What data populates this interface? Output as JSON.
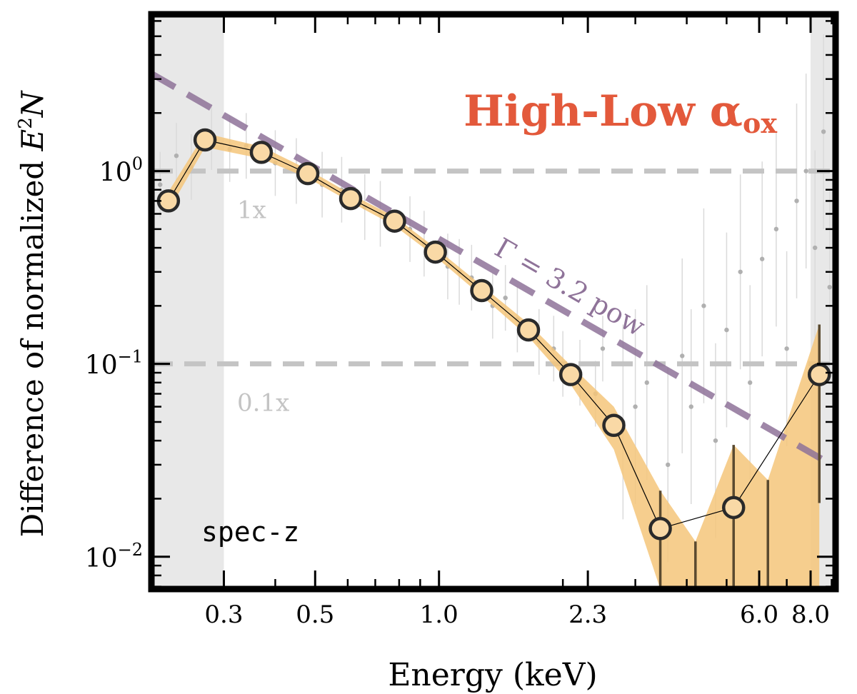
{
  "chart_data": {
    "type": "scatter",
    "title": "High-Low α",
    "title_subscript": "ox",
    "xlabel": "Energy (keV)",
    "ylabel": "Difference of normalized ",
    "ylabel_math": "E",
    "ylabel_sup": "2",
    "ylabel_tail": "N",
    "x_scale": "log",
    "y_scale": "log",
    "xlim": [
      0.2,
      9.2
    ],
    "ylim": [
      0.0068,
      6.5
    ],
    "xticks": [
      {
        "value": 0.3,
        "label": "0.3"
      },
      {
        "value": 0.5,
        "label": "0.5"
      },
      {
        "value": 1.0,
        "label": "1.0"
      },
      {
        "value": 2.3,
        "label": "2.3"
      },
      {
        "value": 6.0,
        "label": "6.0"
      },
      {
        "value": 8.0,
        "label": "8.0"
      }
    ],
    "yticks": [
      {
        "value": 0.01,
        "base": "10",
        "exp": "−2"
      },
      {
        "value": 0.1,
        "base": "10",
        "exp": "−1"
      },
      {
        "value": 1.0,
        "base": "10",
        "exp": "0"
      }
    ],
    "colors": {
      "shade": "#e8e8e8",
      "band": "#f4c57a",
      "line": "#000000",
      "marker_edge": "#2a2a2a",
      "marker_fill": "#f9d9a6",
      "powerlaw": "#8f7399",
      "reference": "#c4c4c4",
      "title": "#e3593b",
      "scatter": "#b0b0b0"
    },
    "shaded_regions": [
      [
        0.2,
        0.3
      ],
      [
        8.0,
        9.2
      ]
    ],
    "reference_lines": [
      {
        "y": 1.0,
        "label": "1x"
      },
      {
        "y": 0.1,
        "label": "0.1x"
      }
    ],
    "powerlaw": {
      "label": "Γ = 3.2 pow",
      "points": [
        [
          0.2,
          3.2
        ],
        [
          9.0,
          0.03
        ]
      ]
    },
    "annotation": "spec-z",
    "series": [
      {
        "x": [
          0.22,
          0.27,
          0.37,
          0.48,
          0.61,
          0.78,
          0.98,
          1.27,
          1.65,
          2.09,
          2.66,
          3.45,
          5.2,
          8.4
        ],
        "y": [
          0.7,
          1.45,
          1.25,
          0.97,
          0.72,
          0.55,
          0.38,
          0.24,
          0.15,
          0.088,
          0.048,
          0.014,
          0.018,
          0.088
        ],
        "band_x": [
          0.22,
          0.27,
          0.37,
          0.48,
          0.61,
          0.78,
          0.98,
          1.27,
          1.65,
          2.09,
          2.66,
          3.45,
          4.2,
          5.2,
          6.3,
          8.4
        ],
        "band_low": [
          0.62,
          1.33,
          1.16,
          0.92,
          0.69,
          0.52,
          0.36,
          0.225,
          0.138,
          0.078,
          0.036,
          0.0068,
          0.0068,
          0.0068,
          0.0068,
          0.0068
        ],
        "band_high": [
          0.78,
          1.57,
          1.34,
          1.02,
          0.76,
          0.58,
          0.4,
          0.255,
          0.162,
          0.098,
          0.06,
          0.022,
          0.012,
          0.038,
          0.025,
          0.16
        ],
        "errorbars": [
          {
            "x": 3.45,
            "low": 0.0068,
            "high": 0.022
          },
          {
            "x": 4.2,
            "low": 0.0068,
            "high": 0.012
          },
          {
            "x": 5.2,
            "low": 0.0068,
            "high": 0.038
          },
          {
            "x": 6.3,
            "low": 0.0068,
            "high": 0.025
          },
          {
            "x": 8.4,
            "low": 0.019,
            "high": 0.16
          }
        ]
      }
    ],
    "background_points": {
      "x": [
        0.21,
        0.23,
        0.25,
        0.28,
        0.31,
        0.34,
        0.4,
        0.45,
        0.52,
        0.58,
        0.66,
        0.72,
        0.85,
        0.92,
        1.05,
        1.12,
        1.2,
        1.35,
        1.45,
        1.55,
        1.75,
        1.9,
        2.0,
        2.2,
        2.4,
        2.5,
        2.8,
        3.0,
        3.2,
        3.6,
        3.9,
        4.1,
        4.4,
        4.7,
        5.0,
        5.4,
        5.7,
        6.1,
        6.6,
        7.0,
        7.4,
        7.8,
        8.2,
        8.6,
        8.9
      ],
      "y": [
        0.85,
        1.2,
        1.05,
        1.5,
        1.3,
        1.35,
        1.1,
        1.0,
        0.85,
        0.8,
        0.65,
        0.6,
        0.5,
        0.42,
        0.32,
        0.3,
        0.28,
        0.2,
        0.22,
        0.17,
        0.13,
        0.12,
        0.1,
        0.09,
        0.07,
        0.12,
        0.05,
        0.06,
        0.08,
        0.03,
        0.11,
        0.06,
        0.2,
        0.04,
        0.15,
        0.3,
        0.08,
        0.35,
        0.5,
        0.12,
        0.7,
        1.0,
        0.4,
        1.6,
        0.25
      ]
    }
  }
}
